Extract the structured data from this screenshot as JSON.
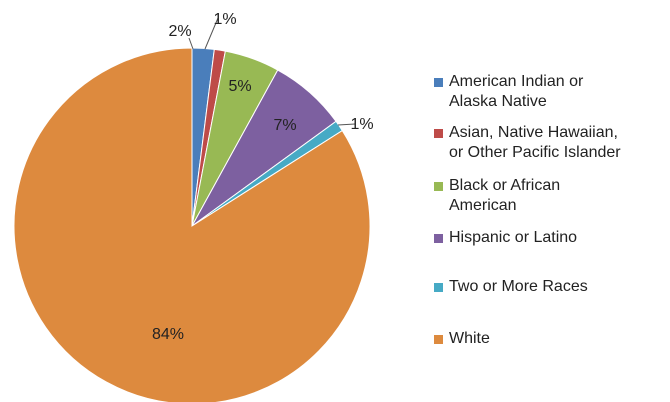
{
  "chart_data": {
    "type": "pie",
    "categories": [
      "American Indian or\nAlaska Native",
      "Asian, Native Hawaiian,\nor Other Pacific Islander",
      "Black or African\nAmerican",
      "Hispanic or Latino",
      "Two or More Races",
      "White"
    ],
    "values": [
      2,
      1,
      5,
      7,
      1,
      84
    ],
    "data_labels": [
      "2%",
      "1%",
      "5%",
      "7%",
      "1%",
      "84%"
    ],
    "colors": [
      "#4A7EBB",
      "#BE4B48",
      "#98B954",
      "#7D60A0",
      "#46AAC5",
      "#DD8A3E"
    ],
    "legend_position": "right",
    "start_angle": "12 o'clock",
    "direction": "clockwise"
  }
}
